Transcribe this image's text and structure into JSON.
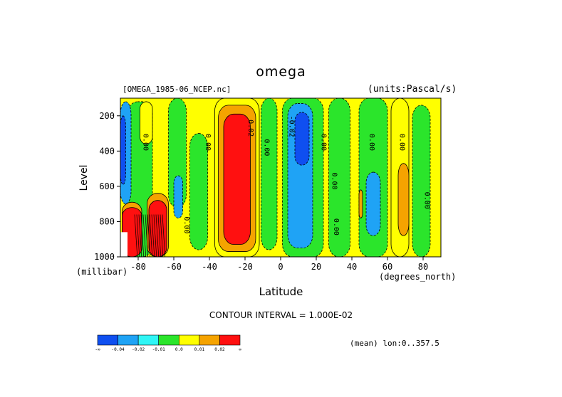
{
  "header": {
    "title": "omega",
    "file_label": "[OMEGA_1985-06_NCEP.nc]",
    "units_label": "(units:Pascal/s)"
  },
  "footer": {
    "contour_interval": "CONTOUR INTERVAL = 1.000E-02",
    "mean_label": "(mean) lon:0..357.5"
  },
  "chart_data": {
    "type": "heatmap",
    "title": "omega",
    "xlabel": "Latitude",
    "xunits": "(degrees_north)",
    "ylabel": "Level",
    "yunits": "(millibar)",
    "xlim": [
      -90,
      90
    ],
    "ylim": [
      1000,
      100
    ],
    "x_ticks": [
      -80,
      -60,
      -40,
      -20,
      0,
      20,
      40,
      60,
      80
    ],
    "y_ticks": [
      200,
      400,
      600,
      800,
      1000
    ],
    "x_tick_labels": [
      "-80",
      "-60",
      "-40",
      "-20",
      "0",
      "20",
      "40",
      "60",
      "80"
    ],
    "y_tick_labels": [
      "200",
      "400",
      "600",
      "800",
      "1000"
    ],
    "contour_interval": 0.01,
    "colorbar": {
      "colors": [
        "#0f4ff0",
        "#1fa3f5",
        "#2ff5f5",
        "#2be52b",
        "#ffff00",
        "#f5a300",
        "#ff1010"
      ],
      "labels": [
        "-∞",
        "-0.04",
        "-0.02",
        "-0.01",
        "0.0",
        "0.01",
        "0.02",
        "∞"
      ]
    },
    "background_value": 0.0,
    "regions": [
      {
        "lat": [
          -86,
          -72
        ],
        "lev": [
          120,
          1000
        ],
        "value": -0.01
      },
      {
        "lat": [
          -90,
          -84
        ],
        "lev": [
          120,
          700
        ],
        "value": -0.02
      },
      {
        "lat": [
          -90,
          -87
        ],
        "lev": [
          200,
          590
        ],
        "value": -0.04
      },
      {
        "lat": [
          -79,
          -72
        ],
        "lev": [
          120,
          360
        ],
        "value": 0.0
      },
      {
        "lat": [
          -89,
          -78
        ],
        "lev": [
          690,
          1000
        ],
        "value": 0.01
      },
      {
        "lat": [
          -89,
          -78
        ],
        "lev": [
          720,
          1000
        ],
        "value": 0.02
      },
      {
        "lat": [
          -75,
          -63
        ],
        "lev": [
          640,
          1000
        ],
        "value": 0.01
      },
      {
        "lat": [
          -74,
          -64
        ],
        "lev": [
          680,
          1000
        ],
        "value": 0.02
      },
      {
        "lat": [
          -63,
          -53
        ],
        "lev": [
          100,
          720
        ],
        "value": -0.01
      },
      {
        "lat": [
          -60,
          -55
        ],
        "lev": [
          540,
          780
        ],
        "value": -0.02
      },
      {
        "lat": [
          -51,
          -41
        ],
        "lev": [
          300,
          960
        ],
        "value": -0.01
      },
      {
        "lat": [
          -37,
          -12
        ],
        "lev": [
          100,
          1000
        ],
        "value": 0.0
      },
      {
        "lat": [
          -35,
          -14
        ],
        "lev": [
          140,
          970
        ],
        "value": 0.01
      },
      {
        "lat": [
          -32,
          -17
        ],
        "lev": [
          190,
          930
        ],
        "value": 0.02
      },
      {
        "lat": [
          -11,
          -2
        ],
        "lev": [
          100,
          960
        ],
        "value": -0.01
      },
      {
        "lat": [
          1,
          24
        ],
        "lev": [
          100,
          1000
        ],
        "value": -0.01
      },
      {
        "lat": [
          4,
          18
        ],
        "lev": [
          130,
          950
        ],
        "value": -0.02
      },
      {
        "lat": [
          8,
          16
        ],
        "lev": [
          180,
          480
        ],
        "value": -0.04
      },
      {
        "lat": [
          27,
          39
        ],
        "lev": [
          100,
          1000
        ],
        "value": -0.01
      },
      {
        "lat": [
          44,
          60
        ],
        "lev": [
          100,
          1000
        ],
        "value": -0.01
      },
      {
        "lat": [
          44,
          46
        ],
        "lev": [
          620,
          780
        ],
        "value": 0.01
      },
      {
        "lat": [
          48,
          56
        ],
        "lev": [
          520,
          880
        ],
        "value": -0.02
      },
      {
        "lat": [
          62,
          72
        ],
        "lev": [
          100,
          1000
        ],
        "value": 0.0
      },
      {
        "lat": [
          66,
          72
        ],
        "lev": [
          470,
          880
        ],
        "value": 0.01
      },
      {
        "lat": [
          74,
          84
        ],
        "lev": [
          140,
          1000
        ],
        "value": -0.01
      }
    ],
    "contour_labels": [
      {
        "lat": -77,
        "lev": 350,
        "text": "0.00"
      },
      {
        "lat": -42,
        "lev": 350,
        "text": "0.00"
      },
      {
        "lat": -18,
        "lev": 270,
        "text": "0.02"
      },
      {
        "lat": -9,
        "lev": 380,
        "text": "0.00"
      },
      {
        "lat": 5,
        "lev": 260,
        "text": "-0.02"
      },
      {
        "lat": 23,
        "lev": 350,
        "text": "0.00"
      },
      {
        "lat": 29,
        "lev": 570,
        "text": "0.00"
      },
      {
        "lat": 50,
        "lev": 350,
        "text": "0.00"
      },
      {
        "lat": 67,
        "lev": 350,
        "text": "0.00"
      },
      {
        "lat": 81,
        "lev": 680,
        "text": "0.00"
      },
      {
        "lat": -54,
        "lev": 820,
        "text": "0.00"
      },
      {
        "lat": 30,
        "lev": 830,
        "text": "0.00"
      }
    ]
  }
}
